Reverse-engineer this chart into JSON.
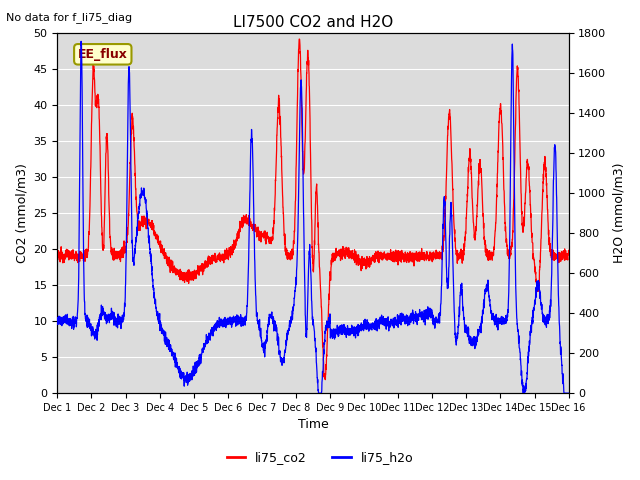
{
  "title": "LI7500 CO2 and H2O",
  "top_left_text": "No data for f_li75_diag",
  "xlabel": "Time",
  "ylabel_left": "CO2 (mmol/m3)",
  "ylabel_right": "H2O (mmol/m3)",
  "ylim_left": [
    0,
    50
  ],
  "ylim_right": [
    0,
    1800
  ],
  "yticks_left": [
    0,
    5,
    10,
    15,
    20,
    25,
    30,
    35,
    40,
    45,
    50
  ],
  "yticks_right": [
    0,
    200,
    400,
    600,
    800,
    1000,
    1200,
    1400,
    1600,
    1800
  ],
  "color_co2": "#ff0000",
  "color_h2o": "#0000ff",
  "bg_color": "#dcdcdc",
  "legend_label_co2": "li75_co2",
  "legend_label_h2o": "li75_h2o",
  "label_box_text": "EE_flux",
  "label_box_facecolor": "#ffffcc",
  "label_box_edgecolor": "#999900",
  "xtick_labels": [
    "Dec 1",
    "Dec 2",
    "Dec 3",
    "Dec 4",
    "Dec 5",
    "Dec 6",
    "Dec 7",
    "Dec 8",
    "Dec 9",
    "Dec 10",
    "Dec 11",
    "Dec 12",
    "Dec 13",
    "Dec 14",
    "Dec 15",
    "Dec 16"
  ]
}
